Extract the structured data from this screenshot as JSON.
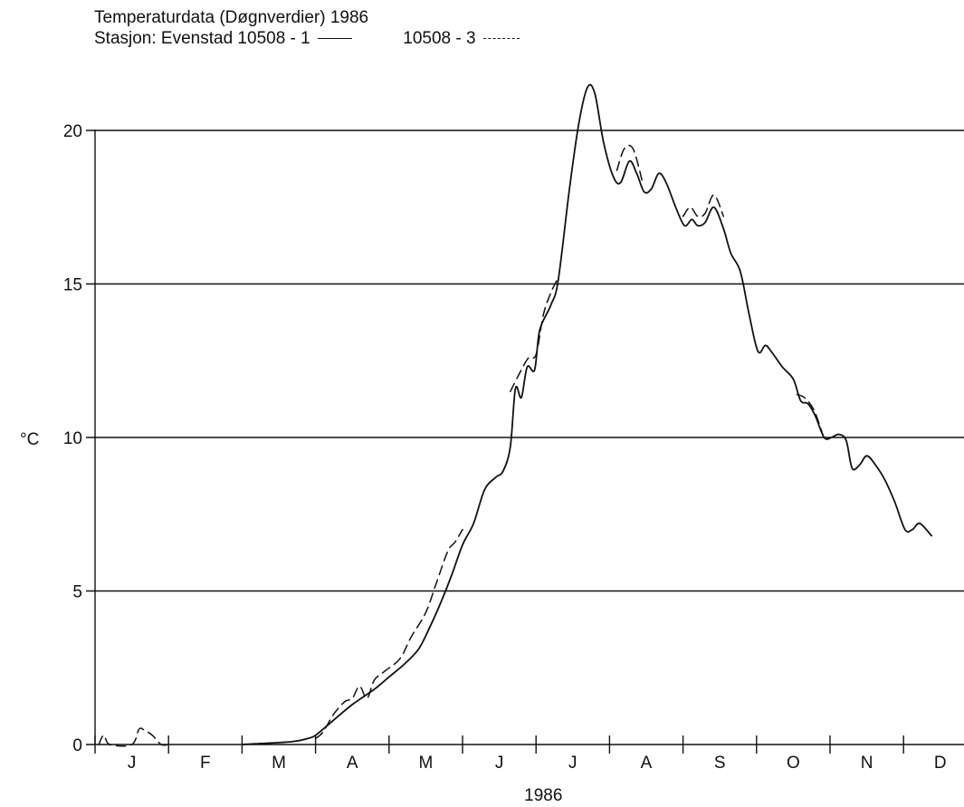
{
  "header": {
    "title": "Temperaturdata  (Døgnverdier)  1986",
    "station_label": "Stasjon: Evenstad 10508 - 1",
    "second_series_label": "10508 - 3"
  },
  "chart_data": {
    "type": "line",
    "title": "Temperaturdata  (Døgnverdier)  1986",
    "ylabel": "°C",
    "xlabel": "1986",
    "ylim": [
      0,
      21.8
    ],
    "yticks": [
      0,
      5,
      10,
      15,
      20
    ],
    "xlim": [
      0,
      12
    ],
    "month_labels": [
      "J",
      "F",
      "M",
      "A",
      "M",
      "J",
      "J",
      "A",
      "S",
      "O",
      "N",
      "D"
    ],
    "grid": true,
    "series": [
      {
        "name": "10508 - 1",
        "style": "solid",
        "points": [
          [
            2.0,
            0.0
          ],
          [
            2.4,
            0.05
          ],
          [
            2.7,
            0.1
          ],
          [
            2.9,
            0.2
          ],
          [
            3.0,
            0.3
          ],
          [
            3.2,
            0.7
          ],
          [
            3.5,
            1.3
          ],
          [
            3.8,
            1.8
          ],
          [
            4.0,
            2.2
          ],
          [
            4.2,
            2.6
          ],
          [
            4.4,
            3.1
          ],
          [
            4.55,
            3.8
          ],
          [
            4.7,
            4.6
          ],
          [
            4.85,
            5.5
          ],
          [
            5.0,
            6.5
          ],
          [
            5.15,
            7.2
          ],
          [
            5.3,
            8.3
          ],
          [
            5.45,
            8.7
          ],
          [
            5.55,
            8.9
          ],
          [
            5.65,
            9.7
          ],
          [
            5.72,
            11.6
          ],
          [
            5.8,
            11.3
          ],
          [
            5.88,
            12.3
          ],
          [
            5.98,
            12.2
          ],
          [
            6.05,
            13.5
          ],
          [
            6.2,
            14.3
          ],
          [
            6.3,
            15.1
          ],
          [
            6.45,
            18.0
          ],
          [
            6.58,
            20.2
          ],
          [
            6.7,
            21.4
          ],
          [
            6.8,
            21.2
          ],
          [
            6.92,
            19.6
          ],
          [
            7.05,
            18.5
          ],
          [
            7.15,
            18.3
          ],
          [
            7.27,
            19.0
          ],
          [
            7.37,
            18.6
          ],
          [
            7.47,
            18.0
          ],
          [
            7.57,
            18.1
          ],
          [
            7.67,
            18.6
          ],
          [
            7.77,
            18.3
          ],
          [
            7.9,
            17.5
          ],
          [
            8.02,
            16.9
          ],
          [
            8.12,
            17.1
          ],
          [
            8.2,
            16.9
          ],
          [
            8.3,
            17.0
          ],
          [
            8.42,
            17.5
          ],
          [
            8.55,
            16.8
          ],
          [
            8.65,
            16.0
          ],
          [
            8.78,
            15.4
          ],
          [
            8.9,
            14.0
          ],
          [
            9.02,
            12.8
          ],
          [
            9.12,
            13.0
          ],
          [
            9.2,
            12.8
          ],
          [
            9.35,
            12.3
          ],
          [
            9.5,
            11.9
          ],
          [
            9.6,
            11.2
          ],
          [
            9.7,
            11.1
          ],
          [
            9.8,
            10.7
          ],
          [
            9.92,
            10.0
          ],
          [
            10.02,
            10.0
          ],
          [
            10.12,
            10.1
          ],
          [
            10.22,
            9.9
          ],
          [
            10.3,
            9.0
          ],
          [
            10.4,
            9.1
          ],
          [
            10.5,
            9.4
          ],
          [
            10.62,
            9.1
          ],
          [
            10.75,
            8.6
          ],
          [
            10.88,
            7.9
          ],
          [
            11.02,
            7.0
          ],
          [
            11.12,
            7.0
          ],
          [
            11.22,
            7.2
          ],
          [
            11.38,
            6.8
          ]
        ]
      },
      {
        "name": "10508 - 3",
        "style": "dashed",
        "points": [
          [
            0.05,
            0.0
          ],
          [
            0.12,
            0.3
          ],
          [
            0.2,
            0.0
          ],
          [
            0.5,
            0.0
          ],
          [
            0.6,
            0.5
          ],
          [
            0.68,
            0.45
          ],
          [
            0.78,
            0.3
          ],
          [
            0.9,
            0.0
          ],
          [
            1.0,
            0.0
          ],
          [
            3.0,
            0.2
          ],
          [
            3.1,
            0.4
          ],
          [
            3.25,
            1.0
          ],
          [
            3.4,
            1.4
          ],
          [
            3.5,
            1.5
          ],
          [
            3.6,
            1.9
          ],
          [
            3.7,
            1.5
          ],
          [
            3.8,
            2.1
          ],
          [
            3.95,
            2.4
          ],
          [
            4.15,
            2.8
          ],
          [
            4.3,
            3.5
          ],
          [
            4.5,
            4.3
          ],
          [
            4.65,
            5.3
          ],
          [
            4.8,
            6.3
          ],
          [
            4.9,
            6.6
          ],
          [
            5.0,
            7.0
          ],
          [
            5.65,
            11.5
          ],
          [
            5.8,
            12.2
          ],
          [
            5.9,
            12.6
          ],
          [
            6.0,
            12.7
          ],
          [
            6.1,
            14.0
          ],
          [
            6.2,
            14.7
          ],
          [
            6.3,
            15.2
          ],
          [
            7.1,
            18.7
          ],
          [
            7.2,
            19.4
          ],
          [
            7.32,
            19.4
          ],
          [
            7.45,
            18.3
          ],
          [
            8.0,
            17.2
          ],
          [
            8.1,
            17.5
          ],
          [
            8.2,
            17.2
          ],
          [
            8.3,
            17.3
          ],
          [
            8.42,
            17.9
          ],
          [
            8.55,
            17.2
          ],
          [
            9.55,
            11.4
          ],
          [
            9.65,
            11.3
          ],
          [
            9.78,
            10.9
          ],
          [
            9.9,
            10.1
          ]
        ]
      }
    ]
  }
}
